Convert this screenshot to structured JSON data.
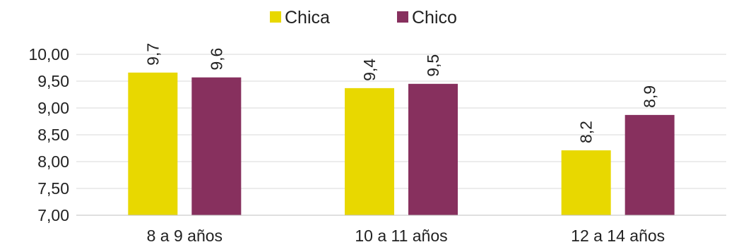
{
  "chart_data": {
    "type": "bar",
    "categories": [
      "8 a 9 años",
      "10 a 11 años",
      "12 a 14 años"
    ],
    "series": [
      {
        "name": "Chica",
        "color": "#e8d800",
        "values": [
          9.66,
          9.37,
          8.21
        ],
        "labels": [
          "9,7",
          "9,4",
          "8,2"
        ]
      },
      {
        "name": "Chico",
        "color": "#87305e",
        "values": [
          9.57,
          9.45,
          8.87
        ],
        "labels": [
          "9,6",
          "9,5",
          "8,9"
        ]
      }
    ],
    "title": "",
    "xlabel": "",
    "ylabel": "",
    "ylim": [
      7.0,
      10.0
    ],
    "yticks": [
      7.0,
      7.5,
      8.0,
      8.5,
      9.0,
      9.5,
      10.0
    ],
    "ytick_labels": [
      "7,00",
      "7,50",
      "8,00",
      "8,50",
      "9,00",
      "9,50",
      "10,00"
    ],
    "grid": true,
    "legend_position": "top-center",
    "data_label_orientation": "vertical"
  }
}
